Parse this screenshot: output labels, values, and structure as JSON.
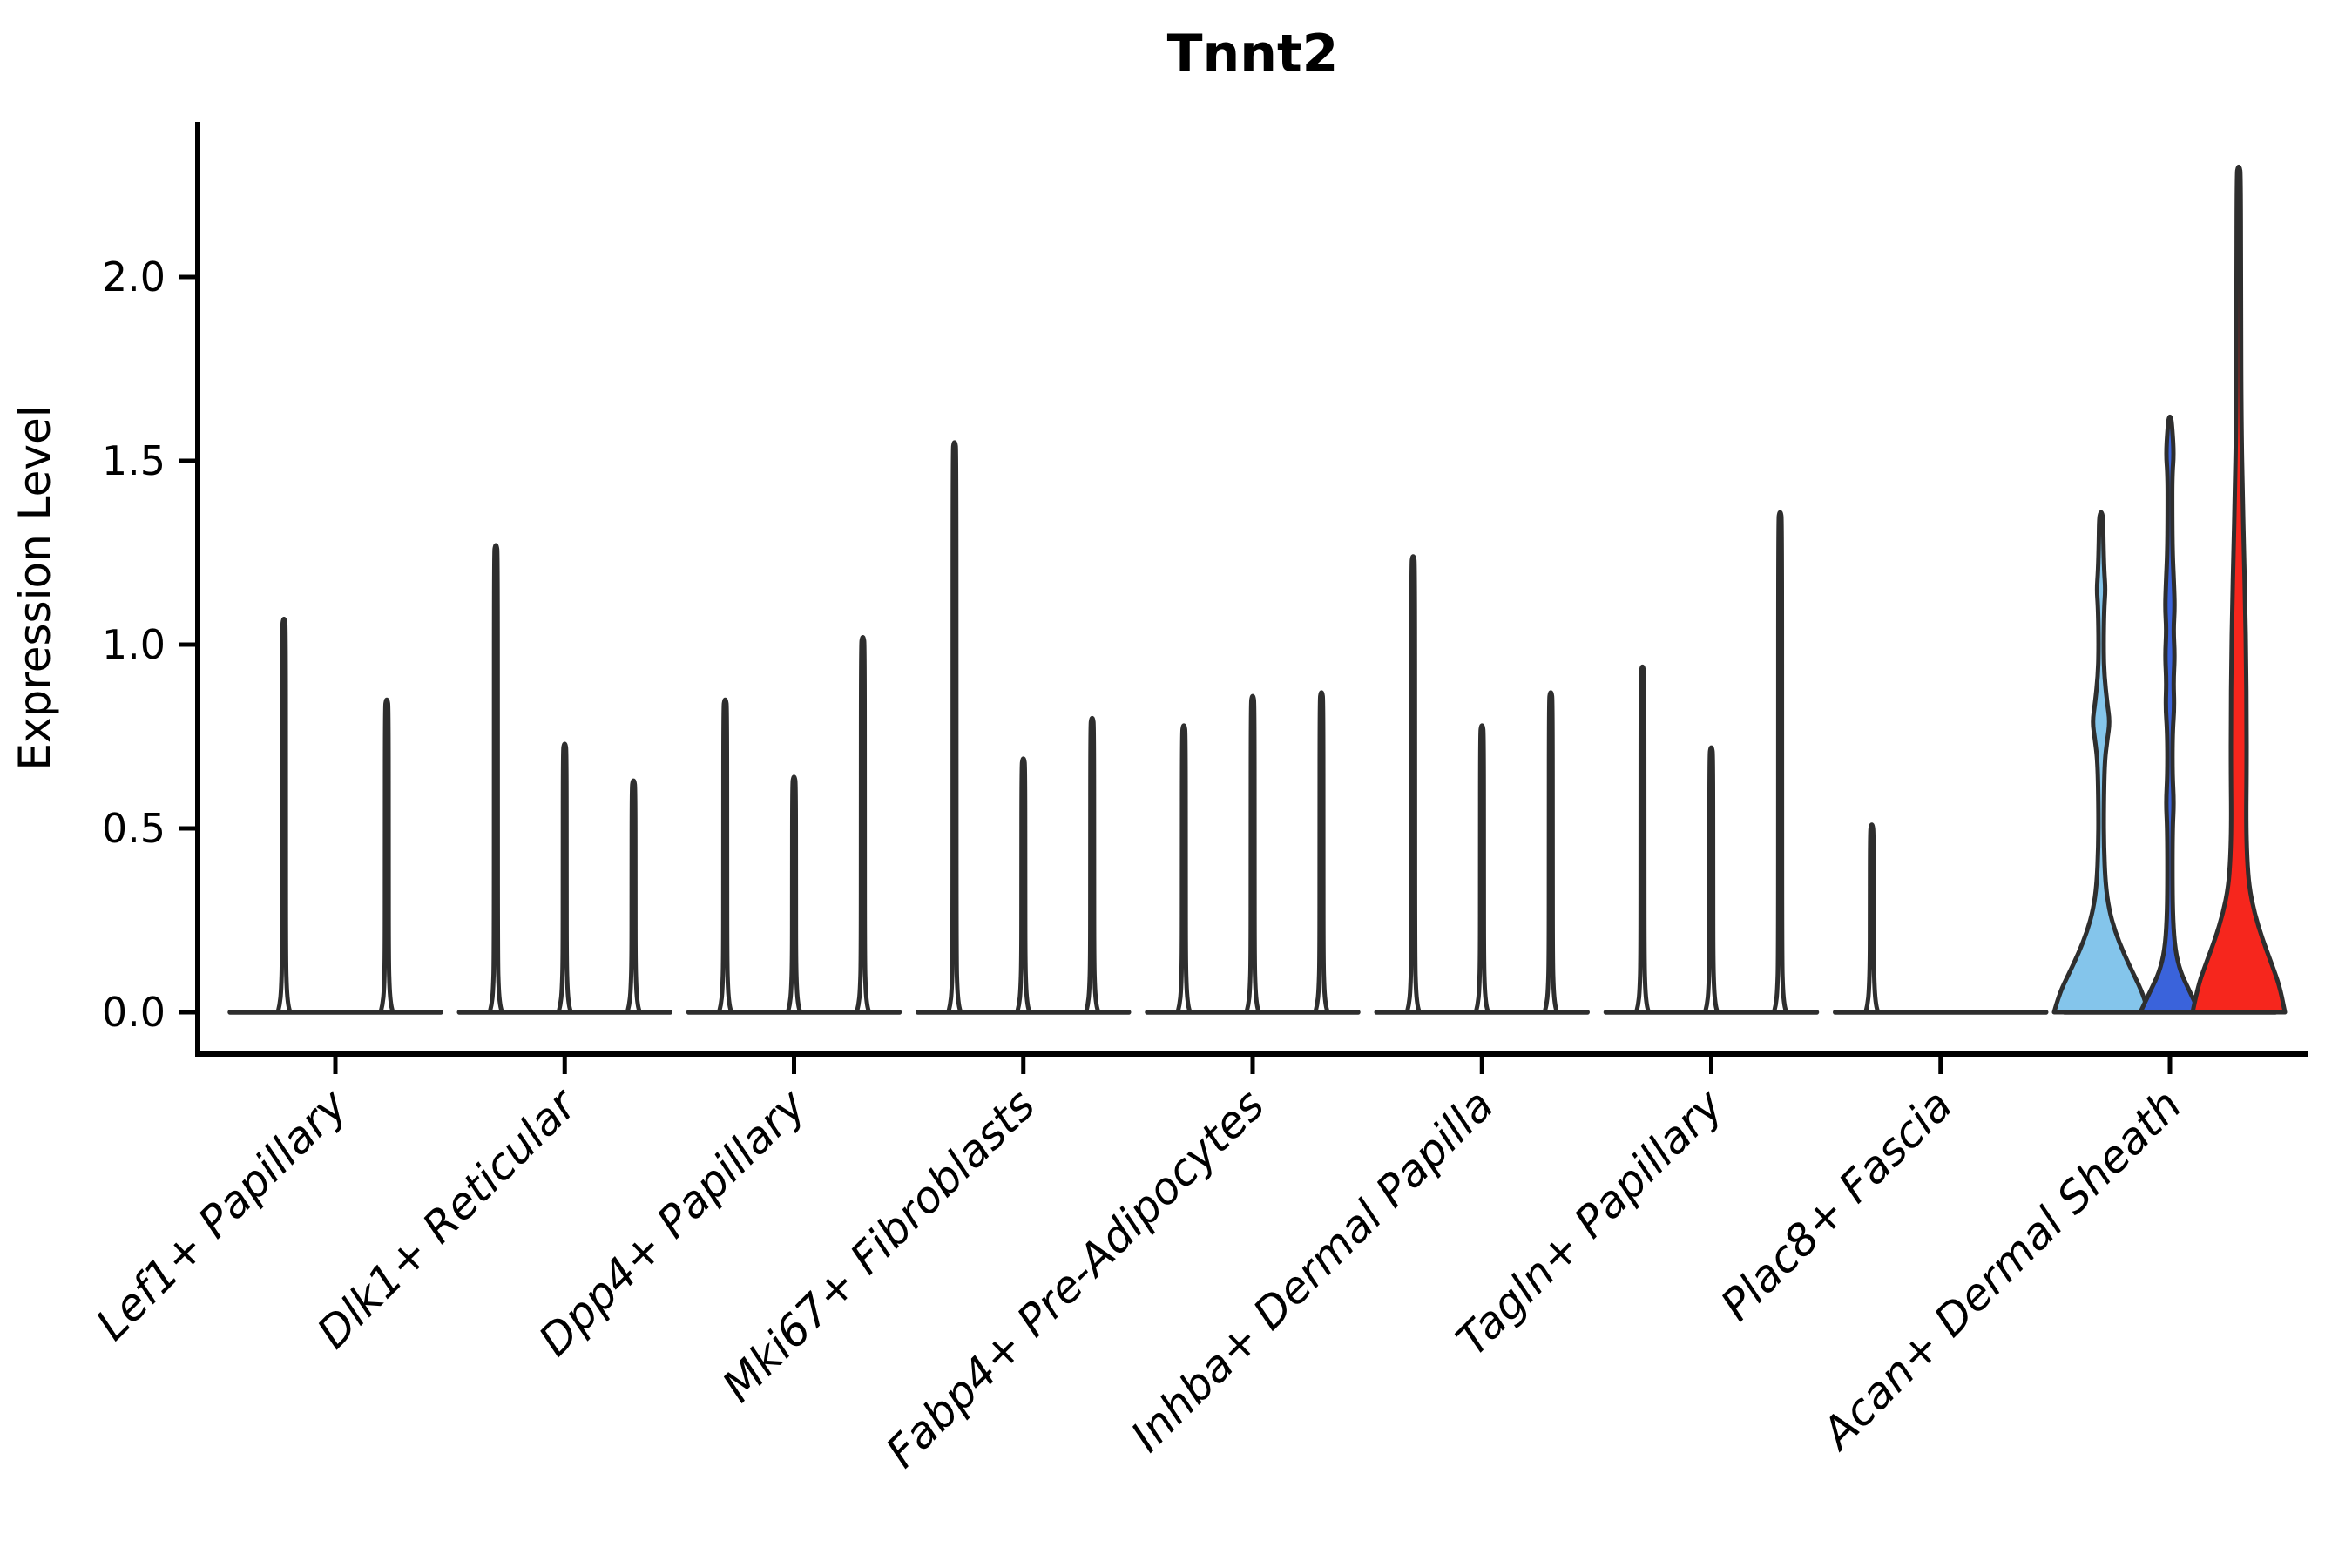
{
  "chart_data": {
    "type": "violin",
    "title": "Tnnt2",
    "ylabel": "Expression Level",
    "ylim": [
      0,
      2.3
    ],
    "yticks": [
      "0.0",
      "0.5",
      "1.0",
      "1.5",
      "2.0"
    ],
    "grid": "off",
    "legend": "none",
    "outline_color": "#2E2E2E",
    "axis_color": "#000000",
    "categories": [
      "Lef1+ Papillary",
      "Dlk1+ Reticular",
      "Dpp4+ Papillary",
      "Mki67+ Fibroblasts",
      "Fabp4+ Pre-Adipocytes",
      "Inhba+ Dermal Papilla",
      "Tagln+ Papillary",
      "Plac8+ Fascia",
      "Acan+ Dermal Sheath"
    ],
    "groups": [
      {
        "category": "Lef1+ Papillary",
        "violins": [
          {
            "max": 1.07
          },
          {
            "max": 0.85
          }
        ]
      },
      {
        "category": "Dlk1+ Reticular",
        "violins": [
          {
            "max": 1.27
          },
          {
            "max": 0.73
          },
          {
            "max": 0.63
          }
        ]
      },
      {
        "category": "Dpp4+ Papillary",
        "violins": [
          {
            "max": 0.85
          },
          {
            "max": 0.64
          },
          {
            "max": 1.02
          }
        ]
      },
      {
        "category": "Mki67+ Fibroblasts",
        "violins": [
          {
            "max": 1.55
          },
          {
            "max": 0.69
          },
          {
            "max": 0.8
          }
        ]
      },
      {
        "category": "Fabp4+ Pre-Adipocytes",
        "violins": [
          {
            "max": 0.78
          },
          {
            "max": 0.86
          },
          {
            "max": 0.87
          }
        ]
      },
      {
        "category": "Inhba+ Dermal Papilla",
        "violins": [
          {
            "max": 1.24
          },
          {
            "max": 0.78
          },
          {
            "max": 0.87
          }
        ]
      },
      {
        "category": "Tagln+ Papillary",
        "violins": [
          {
            "max": 0.94
          },
          {
            "max": 0.72
          },
          {
            "max": 1.36
          }
        ]
      },
      {
        "category": "Plac8+ Fascia",
        "violins": [
          {
            "max": 0.51
          },
          {
            "max": 0,
            "flat": true
          },
          {
            "max": 0,
            "flat": true
          }
        ]
      },
      {
        "category": "Acan+ Dermal Sheath",
        "violins": [
          {
            "max": 1.36,
            "fill": "#84C5EB",
            "profile": [
              [
                1.36,
                1
              ],
              [
                1.34,
                2.3
              ],
              [
                1.28,
                2.6
              ],
              [
                1.2,
                3.5
              ],
              [
                1.15,
                5
              ],
              [
                1.1,
                3.5
              ],
              [
                1.0,
                2.8
              ],
              [
                0.92,
                3.5
              ],
              [
                0.84,
                7
              ],
              [
                0.79,
                10
              ],
              [
                0.74,
                7
              ],
              [
                0.68,
                4
              ],
              [
                0.55,
                3
              ],
              [
                0.45,
                3.2
              ],
              [
                0.35,
                5
              ],
              [
                0.28,
                9
              ],
              [
                0.22,
                16
              ],
              [
                0.16,
                26
              ],
              [
                0.1,
                38
              ],
              [
                0.05,
                48
              ],
              [
                0.0,
                54
              ]
            ]
          },
          {
            "max": 1.62,
            "fill": "#3A63DB",
            "profile": [
              [
                1.62,
                1
              ],
              [
                1.6,
                2.3
              ],
              [
                1.52,
                4.5
              ],
              [
                1.46,
                2.6
              ],
              [
                1.35,
                2.6
              ],
              [
                1.25,
                3
              ],
              [
                1.17,
                4.5
              ],
              [
                1.1,
                5.5
              ],
              [
                1.04,
                4
              ],
              [
                0.97,
                5.5
              ],
              [
                0.9,
                4
              ],
              [
                0.83,
                5
              ],
              [
                0.76,
                3
              ],
              [
                0.65,
                2.8
              ],
              [
                0.57,
                4.5
              ],
              [
                0.5,
                3
              ],
              [
                0.35,
                2.8
              ],
              [
                0.25,
                3.5
              ],
              [
                0.17,
                6
              ],
              [
                0.11,
                12
              ],
              [
                0.06,
                22
              ],
              [
                0.0,
                34
              ]
            ]
          },
          {
            "max": 2.3,
            "fill": "#F6261D",
            "profile": [
              [
                2.3,
                1
              ],
              [
                2.28,
                2.3
              ],
              [
                1.9,
                2.5
              ],
              [
                1.6,
                3
              ],
              [
                1.4,
                4.5
              ],
              [
                1.25,
                6
              ],
              [
                1.1,
                7.5
              ],
              [
                0.95,
                8.5
              ],
              [
                0.8,
                9
              ],
              [
                0.65,
                9
              ],
              [
                0.52,
                8.5
              ],
              [
                0.42,
                9.5
              ],
              [
                0.34,
                12
              ],
              [
                0.27,
                18
              ],
              [
                0.2,
                27
              ],
              [
                0.13,
                38
              ],
              [
                0.07,
                47
              ],
              [
                0.0,
                53
              ]
            ]
          }
        ]
      }
    ]
  }
}
